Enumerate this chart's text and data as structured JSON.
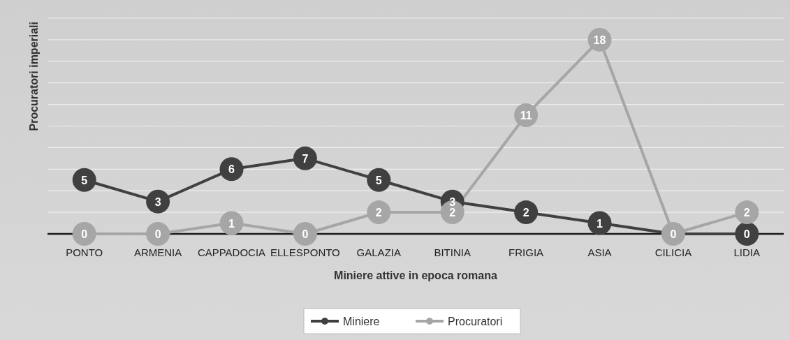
{
  "chart_data": {
    "type": "line",
    "xlabel": "Miniere attive in epoca romana",
    "ylabel": "Procuratori imperiali",
    "categories": [
      "PONTO",
      "ARMENIA",
      "CAPPADOCIA",
      "ELLESPONTO",
      "GALAZIA",
      "BITINIA",
      "FRIGIA",
      "ASIA",
      "CILICIA",
      "LIDIA"
    ],
    "series": [
      {
        "name": "Miniere",
        "color": "#404040",
        "values": [
          5,
          3,
          6,
          7,
          5,
          3,
          2,
          1,
          0,
          0
        ],
        "value_labels": [
          "5",
          "3",
          "6",
          "7",
          "5",
          "3",
          "2",
          "1",
          null,
          "0"
        ]
      },
      {
        "name": "Procuratori",
        "color": "#a6a6a6",
        "values": [
          0,
          0,
          1,
          0,
          2,
          2,
          11,
          18,
          0,
          2
        ],
        "value_labels": [
          "0",
          "0",
          "1",
          "0",
          "2",
          "2",
          "11",
          "18",
          "0",
          "2"
        ]
      }
    ],
    "ylim": [
      0,
      20
    ],
    "yticks": [
      {
        "value": 0,
        "label": null
      },
      {
        "value": 2,
        "label": null
      },
      {
        "value": 4,
        "label": null
      },
      {
        "value": 6,
        "label": null
      },
      {
        "value": 8,
        "label": null
      },
      {
        "value": 10,
        "label": null
      },
      {
        "value": 12,
        "label": null
      },
      {
        "value": 14,
        "label": null
      },
      {
        "value": 16,
        "label": null
      },
      {
        "value": 18,
        "label": null
      },
      {
        "value": 20,
        "label": null
      }
    ],
    "grid": "y",
    "marker": "circle",
    "line_style": "solid",
    "legend": "bottom"
  }
}
